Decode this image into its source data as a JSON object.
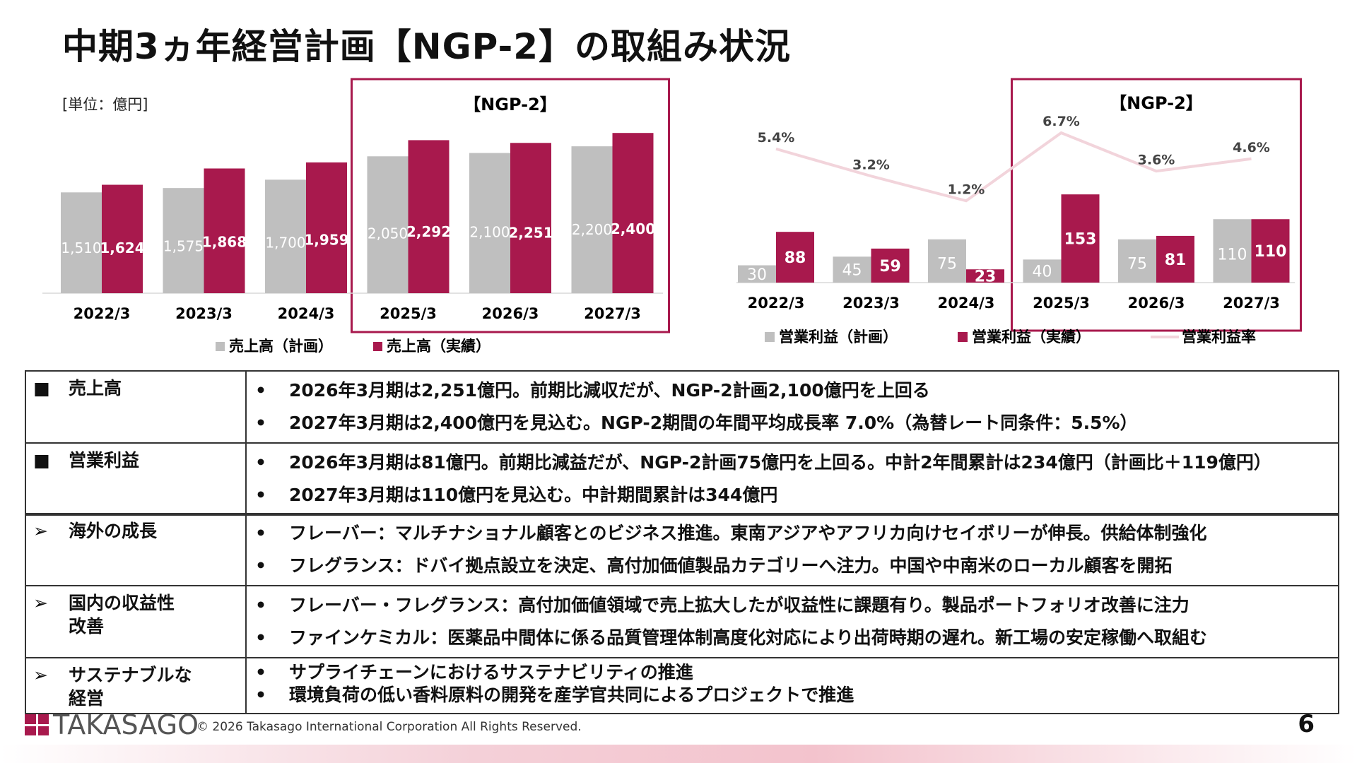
{
  "title": "中期3ヵ年経営計画【NGP-2】の取組み状況",
  "unit_label": "[単位：億円]",
  "colors": {
    "plan": "#bfbfbf",
    "actual": "#a8194d",
    "rate": "#f2d4db",
    "frame": "#a8194d"
  },
  "chart_data": [
    {
      "type": "bar",
      "categories": [
        "2022/3",
        "2023/3",
        "2024/3",
        "2025/3",
        "2026/3",
        "2027/3"
      ],
      "series": [
        {
          "name": "売上高（計画）",
          "values": [
            1510,
            1575,
            1700,
            2050,
            2100,
            2200
          ],
          "labels": [
            "1,510",
            "1,575",
            "1,700",
            "2,050",
            "2,100",
            "2,200"
          ]
        },
        {
          "name": "売上高（実績）",
          "values": [
            1624,
            1868,
            1959,
            2292,
            2251,
            2400
          ],
          "labels": [
            "1,624",
            "1,868",
            "1,959",
            "2,292",
            "2,251",
            "2,400"
          ]
        }
      ],
      "highlight_label": "【NGP-2】",
      "highlight_categories": [
        "2025/3",
        "2026/3",
        "2027/3"
      ],
      "legend_position": "bottom"
    },
    {
      "type": "bar",
      "categories": [
        "2022/3",
        "2023/3",
        "2024/3",
        "2025/3",
        "2026/3",
        "2027/3"
      ],
      "series": [
        {
          "name": "営業利益（計画）",
          "values": [
            30,
            45,
            75,
            40,
            75,
            110
          ],
          "labels": [
            "30",
            "45",
            "75",
            "40",
            "75",
            "110"
          ]
        },
        {
          "name": "営業利益（実績）",
          "values": [
            88,
            59,
            23,
            153,
            81,
            110
          ],
          "labels": [
            "88",
            "59",
            "23",
            "153",
            "81",
            "110"
          ]
        },
        {
          "name": "営業利益率",
          "type": "line",
          "values": [
            5.4,
            3.2,
            1.2,
            6.7,
            3.6,
            4.6
          ],
          "labels": [
            "5.4%",
            "3.2%",
            "1.2%",
            "6.7%",
            "3.6%",
            "4.6%"
          ]
        }
      ],
      "highlight_label": "【NGP-2】",
      "highlight_categories": [
        "2025/3",
        "2026/3",
        "2027/3"
      ],
      "legend_position": "bottom"
    }
  ],
  "table1": [
    {
      "head": "売上高",
      "marker": "■",
      "items": [
        "2026年3月期は2,251億円。前期比減収だが、NGP-2計画2,100億円を上回る",
        "2027年3月期は2,400億円を見込む。NGP-2期間の年間平均成長率 7.0%（為替レート同条件：5.5%）"
      ]
    },
    {
      "head": "営業利益",
      "marker": "■",
      "items": [
        "2026年3月期は81億円。前期比減益だが、NGP-2計画75億円を上回る。中計2年間累計は234億円（計画比＋119億円）",
        "2027年3月期は110億円を見込む。中計期間累計は344億円"
      ]
    }
  ],
  "table2": [
    {
      "head": "海外の成長",
      "marker": "➢",
      "items": [
        "フレーバー：マルチナショナル顧客とのビジネス推進。東南アジアやアフリカ向けセイボリーが伸長。供給体制強化",
        "フレグランス：ドバイ拠点設立を決定、高付加価値製品カテゴリーへ注力。中国や中南米のローカル顧客を開拓"
      ]
    },
    {
      "head": "国内の収益性改善",
      "head_lines": [
        "国内の収益性",
        "改善"
      ],
      "marker": "➢",
      "items": [
        "フレーバー・フレグランス：高付加価値領域で売上拡大したが収益性に課題有り。製品ポートフォリオ改善に注力",
        "ファインケミカル：医薬品中間体に係る品質管理体制高度化対応により出荷時期の遅れ。新工場の安定稼働へ取組む"
      ]
    },
    {
      "head": "サステナブルな経営",
      "head_lines": [
        "サステナブルな",
        "経営"
      ],
      "marker": "➢",
      "items": [
        "サプライチェーンにおけるサステナビリティの推進",
        "環境負荷の低い香料原料の開発を産学官共同によるプロジェクトで推進"
      ]
    }
  ],
  "footer": {
    "logo_text": "TAKASAGO",
    "copyright": "© 2026 Takasago International Corporation All Rights Reserved.",
    "page": "6"
  }
}
